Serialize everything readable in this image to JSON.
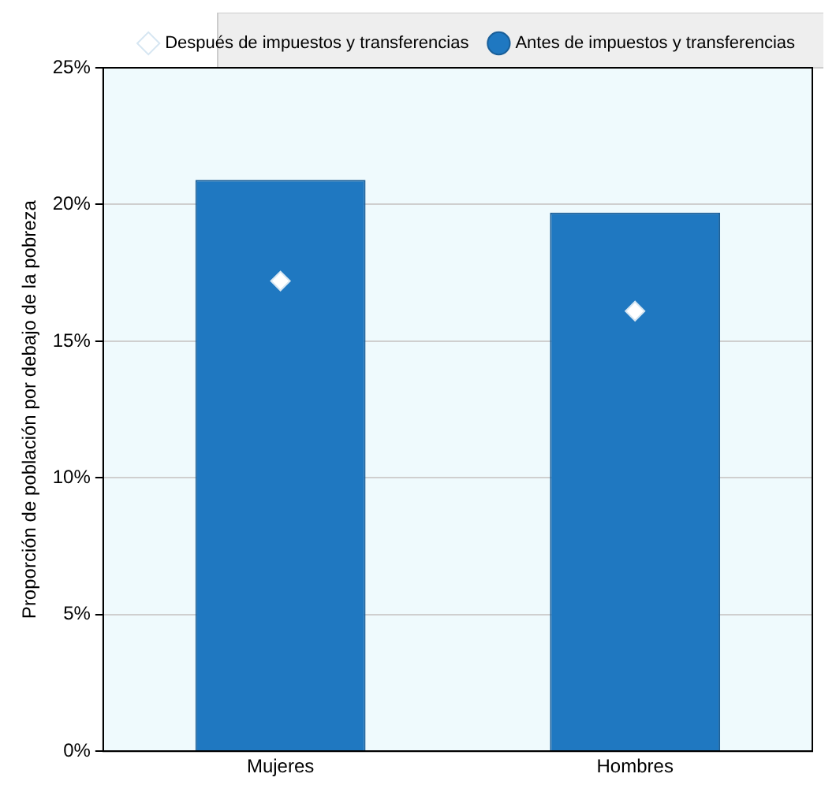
{
  "chart_data": {
    "type": "bar",
    "ylabel": "Proporción de población por debajo de la pobreza",
    "categories": [
      "Mujeres",
      "Hombres"
    ],
    "series": [
      {
        "name": "Antes de impuestos y transferencias",
        "color": "#1f78c1",
        "values": [
          20.9,
          19.7
        ]
      },
      {
        "name": "Después de impuestos y transferencias",
        "type": "scatter",
        "color": "#ffffff",
        "marker": "diamond",
        "values": [
          17.2,
          16.1
        ]
      }
    ],
    "ylim": [
      0,
      25
    ],
    "yticks": [
      {
        "value": 0,
        "label": "0%"
      },
      {
        "value": 5,
        "label": "5%"
      },
      {
        "value": 10,
        "label": "10%"
      },
      {
        "value": 15,
        "label": "15%"
      },
      {
        "value": 20,
        "label": "20%"
      },
      {
        "value": 25,
        "label": "25%"
      }
    ],
    "grid": "y",
    "legend": "top"
  }
}
